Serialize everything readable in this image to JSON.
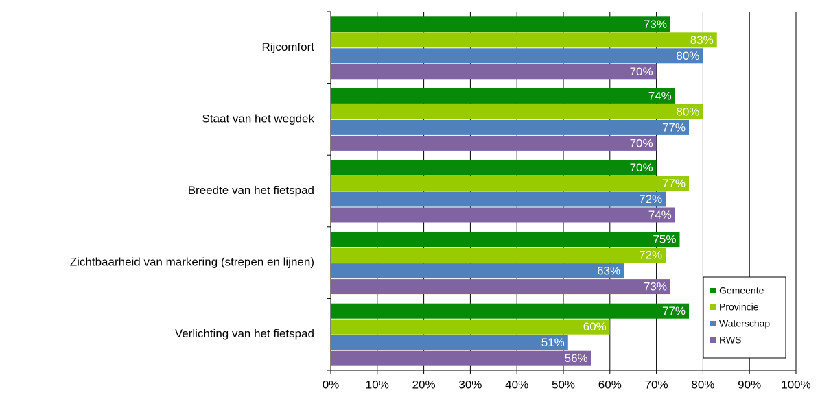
{
  "chart_data": {
    "type": "hbar",
    "categories": [
      "Rijcomfort",
      "Staat van het wegdek",
      "Breedte van het fietspad",
      "Zichtbaarheid van markering (strepen en lijnen)",
      "Verlichting van het fietspad"
    ],
    "series": [
      {
        "name": "Gemeente",
        "color": "#078a07",
        "values": [
          73,
          74,
          70,
          75,
          77
        ],
        "value_labels": [
          "73%",
          "74%",
          "70%",
          "75%",
          "77%"
        ]
      },
      {
        "name": "Provincie",
        "color": "#99cc00",
        "values": [
          83,
          80,
          77,
          72,
          60
        ],
        "value_labels": [
          "83%",
          "80%",
          "77%",
          "72%",
          "60%"
        ]
      },
      {
        "name": "Waterschap",
        "color": "#4f81bd",
        "values": [
          80,
          77,
          72,
          63,
          51
        ],
        "value_labels": [
          "80%",
          "77%",
          "72%",
          "63%",
          "51%"
        ]
      },
      {
        "name": "RWS",
        "color": "#8064a2",
        "values": [
          70,
          70,
          74,
          73,
          56
        ],
        "value_labels": [
          "70%",
          "70%",
          "74%",
          "73%",
          "56%"
        ]
      }
    ],
    "xlim": [
      0,
      100
    ],
    "xticks": [
      {
        "value": 0,
        "label": "0%"
      },
      {
        "value": 10,
        "label": "10%"
      },
      {
        "value": 20,
        "label": "20%"
      },
      {
        "value": 30,
        "label": "30%"
      },
      {
        "value": 40,
        "label": "40%"
      },
      {
        "value": 50,
        "label": "50%"
      },
      {
        "value": 60,
        "label": "60%"
      },
      {
        "value": 70,
        "label": "70%"
      },
      {
        "value": 80,
        "label": "80%"
      },
      {
        "value": 90,
        "label": "90%"
      },
      {
        "value": 100,
        "label": "100%"
      }
    ],
    "grid": true,
    "legend": "lower right"
  }
}
